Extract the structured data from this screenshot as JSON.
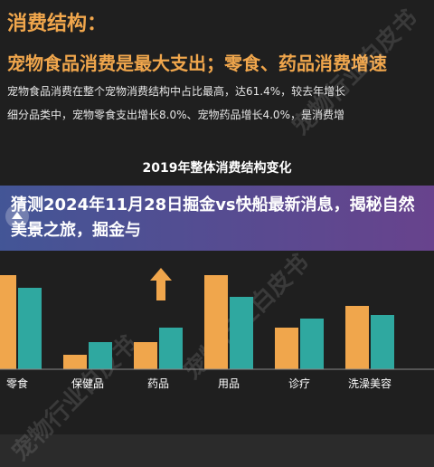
{
  "slide": {
    "title": "消费结构：",
    "headline": "宠物食品消费是最大支出；零食、药品消费增速",
    "line1": "宠物食品消费在整个宠物消费结构中占比最高，达61.4%，较去年增长",
    "line2": "细分品类中，宠物零食支出增长8.0%、宠物药品增长4.0%，是消费增",
    "chart_title": "2019年整体消费结构变化",
    "watermark": "宠物行业白皮书"
  },
  "banner": {
    "text": "猜测2024年11月28日掘金vs快船最新消息，揭秘自然美景之旅，掘金与"
  },
  "colors": {
    "bar_2018": "#f0a64c",
    "bar_2019": "#2fa8a0",
    "arrow": "#f0a64c",
    "banner_start": "#465aa0",
    "banner_end": "#6e4696"
  },
  "chart_data": {
    "type": "bar",
    "title": "2019年整体消费结构变化",
    "categories": [
      "零食",
      "保健品",
      "药品",
      "用品",
      "诊疗",
      "洗澡美容"
    ],
    "series": [
      {
        "values": [
          52,
          8,
          15,
          52,
          23,
          35
        ]
      },
      {
        "values": [
          45,
          15,
          23,
          40,
          28,
          30
        ]
      }
    ]
  }
}
